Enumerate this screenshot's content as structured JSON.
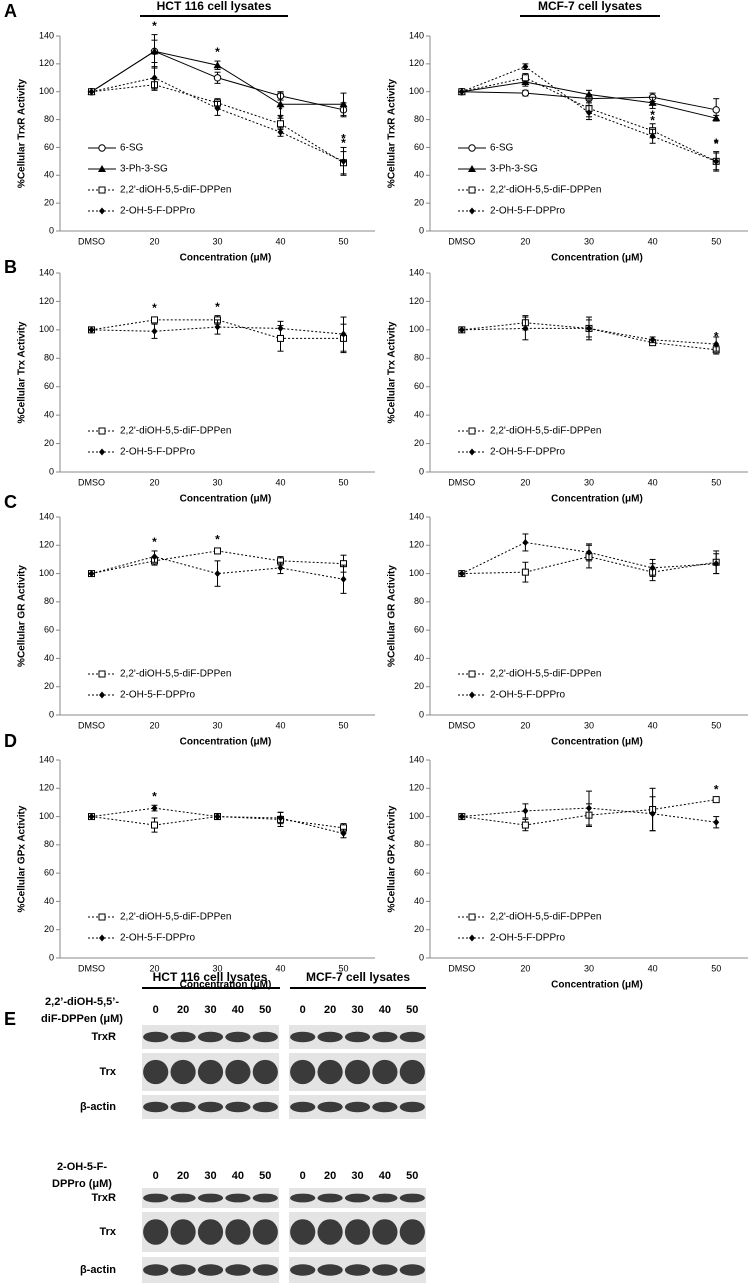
{
  "panel_labels": [
    "A",
    "B",
    "C",
    "D",
    "E"
  ],
  "column_titles": [
    "HCT 116 cell lysates",
    "MCF-7 cell lysates"
  ],
  "chart_data": [
    {
      "type": "line",
      "ylabel": "%Cellular TrxR Activity",
      "xlabel": "Concentration (μM)",
      "categories": [
        "DMSO",
        "20",
        "30",
        "40",
        "50"
      ],
      "ylim": [
        0,
        140
      ],
      "yticks": [
        0,
        20,
        40,
        60,
        80,
        100,
        120,
        140
      ],
      "legend": "lower left",
      "series": [
        {
          "name": "6-SG",
          "color": "#000000",
          "marker": "circle-open",
          "line": "solid",
          "values": [
            100,
            129,
            110,
            97,
            87
          ],
          "errors": [
            0,
            8,
            4,
            3,
            5
          ],
          "annotations": [
            null,
            null,
            null,
            null,
            null
          ]
        },
        {
          "name": "3-Ph-3-SG",
          "color": "#000000",
          "marker": "triangle",
          "line": "solid",
          "values": [
            100,
            129,
            119,
            91,
            91
          ],
          "errors": [
            0,
            12,
            3,
            8,
            8
          ],
          "annotations": [
            null,
            "*",
            "*",
            null,
            null
          ]
        },
        {
          "name": "2,2'-diOH-5,5-diF-DPPen",
          "color": "#000000",
          "marker": "square-open",
          "line": "dotted",
          "values": [
            100,
            105,
            92,
            77,
            49
          ],
          "errors": [
            0,
            4,
            3,
            4,
            8
          ],
          "annotations": [
            null,
            null,
            null,
            "*",
            "*"
          ]
        },
        {
          "name": "2-OH-5-F-DPPro",
          "color": "#000000",
          "marker": "diamond",
          "line": "dotted",
          "values": [
            100,
            110,
            88,
            71,
            50
          ],
          "errors": [
            0,
            8,
            5,
            3,
            10
          ],
          "annotations": [
            null,
            null,
            null,
            "*",
            "*"
          ]
        }
      ]
    },
    {
      "type": "line",
      "ylabel": "%Cellular TrxR Activity",
      "xlabel": "Concentration (μM)",
      "categories": [
        "DMSO",
        "20",
        "30",
        "40",
        "50"
      ],
      "ylim": [
        0,
        140
      ],
      "yticks": [
        0,
        20,
        40,
        60,
        80,
        100,
        120,
        140
      ],
      "legend": "lower left",
      "series": [
        {
          "name": "6-SG",
          "color": "#000000",
          "marker": "circle-open",
          "line": "solid",
          "values": [
            100,
            99,
            95,
            96,
            87
          ],
          "errors": [
            0,
            2,
            3,
            3,
            8
          ],
          "annotations": [
            null,
            null,
            null,
            null,
            null
          ]
        },
        {
          "name": "3-Ph-3-SG",
          "color": "#000000",
          "marker": "triangle",
          "line": "solid",
          "values": [
            100,
            107,
            98,
            92,
            81
          ],
          "errors": [
            0,
            3,
            3,
            4,
            2
          ],
          "annotations": [
            null,
            null,
            null,
            null,
            null
          ]
        },
        {
          "name": "2,2'-diOH-5,5-diF-DPPen",
          "color": "#000000",
          "marker": "square-open",
          "line": "dotted",
          "values": [
            100,
            110,
            88,
            72,
            50
          ],
          "errors": [
            0,
            3,
            6,
            5,
            7
          ],
          "annotations": [
            null,
            null,
            null,
            "*",
            "*"
          ]
        },
        {
          "name": "2-OH-5-F-DPPro",
          "color": "#000000",
          "marker": "diamond",
          "line": "dotted",
          "values": [
            100,
            118,
            85,
            68,
            50
          ],
          "errors": [
            0,
            2,
            5,
            5,
            6
          ],
          "annotations": [
            null,
            null,
            null,
            "*",
            "*"
          ]
        }
      ]
    },
    {
      "type": "line",
      "ylabel": "%Cellular Trx Activity",
      "xlabel": "Concentration (μM)",
      "categories": [
        "DMSO",
        "20",
        "30",
        "40",
        "50"
      ],
      "ylim": [
        0,
        140
      ],
      "yticks": [
        0,
        20,
        40,
        60,
        80,
        100,
        120,
        140
      ],
      "legend": "lower left",
      "series": [
        {
          "name": "2,2'-diOH-5,5-diF-DPPen",
          "color": "#000000",
          "marker": "square-open",
          "line": "dotted",
          "values": [
            100,
            107,
            107,
            94,
            94
          ],
          "errors": [
            0,
            2,
            3,
            9,
            10
          ],
          "annotations": [
            null,
            "*",
            "*",
            null,
            null
          ]
        },
        {
          "name": "2-OH-5-F-DPPro",
          "color": "#000000",
          "marker": "diamond",
          "line": "dotted",
          "values": [
            100,
            99,
            102,
            101,
            97
          ],
          "errors": [
            0,
            5,
            5,
            5,
            12
          ],
          "annotations": [
            null,
            null,
            null,
            null,
            null
          ]
        }
      ]
    },
    {
      "type": "line",
      "ylabel": "%Cellular Trx Activity",
      "xlabel": "Concentration (μM)",
      "categories": [
        "DMSO",
        "20",
        "30",
        "40",
        "50"
      ],
      "ylim": [
        0,
        140
      ],
      "yticks": [
        0,
        20,
        40,
        60,
        80,
        100,
        120,
        140
      ],
      "legend": "lower left",
      "series": [
        {
          "name": "2,2'-diOH-5,5-diF-DPPen",
          "color": "#000000",
          "marker": "square-open",
          "line": "dotted",
          "values": [
            100,
            105,
            101,
            91,
            86
          ],
          "errors": [
            0,
            5,
            6,
            2,
            3
          ],
          "annotations": [
            null,
            null,
            null,
            null,
            "*"
          ]
        },
        {
          "name": "2-OH-5-F-DPPro",
          "color": "#000000",
          "marker": "diamond",
          "line": "dotted",
          "values": [
            100,
            101,
            101,
            93,
            90
          ],
          "errors": [
            0,
            8,
            8,
            2,
            5
          ],
          "annotations": [
            null,
            null,
            null,
            null,
            null
          ]
        }
      ]
    },
    {
      "type": "line",
      "ylabel": "%Cellular GR Activity",
      "xlabel": "Concentration (μM)",
      "categories": [
        "DMSO",
        "20",
        "30",
        "40",
        "50"
      ],
      "ylim": [
        0,
        140
      ],
      "yticks": [
        0,
        20,
        40,
        60,
        80,
        100,
        120,
        140
      ],
      "legend": "lower left",
      "series": [
        {
          "name": "2,2'-diOH-5,5-diF-DPPen",
          "color": "#000000",
          "marker": "square-open",
          "line": "dotted",
          "values": [
            100,
            109,
            116,
            109,
            107
          ],
          "errors": [
            0,
            3,
            2,
            3,
            6
          ],
          "annotations": [
            null,
            null,
            "*",
            null,
            null
          ]
        },
        {
          "name": "2-OH-5-F-DPPro",
          "color": "#000000",
          "marker": "diamond",
          "line": "dotted",
          "values": [
            100,
            112,
            100,
            104,
            96
          ],
          "errors": [
            0,
            4,
            9,
            4,
            10
          ],
          "annotations": [
            null,
            "*",
            null,
            null,
            null
          ]
        }
      ]
    },
    {
      "type": "line",
      "ylabel": "%Cellular GR Activity",
      "xlabel": "Concentration (μM)",
      "categories": [
        "DMSO",
        "20",
        "30",
        "40",
        "50"
      ],
      "ylim": [
        0,
        140
      ],
      "yticks": [
        0,
        20,
        40,
        60,
        80,
        100,
        120,
        140
      ],
      "legend": "lower left",
      "series": [
        {
          "name": "2,2'-diOH-5,5-diF-DPPen",
          "color": "#000000",
          "marker": "square-open",
          "line": "dotted",
          "values": [
            100,
            101,
            112,
            101,
            108
          ],
          "errors": [
            0,
            7,
            8,
            6,
            8
          ],
          "annotations": [
            null,
            null,
            null,
            null,
            null
          ]
        },
        {
          "name": "2-OH-5-F-DPPro",
          "color": "#000000",
          "marker": "diamond",
          "line": "dotted",
          "values": [
            100,
            122,
            115,
            104,
            107
          ],
          "errors": [
            0,
            6,
            6,
            6,
            7
          ],
          "annotations": [
            null,
            null,
            null,
            null,
            null
          ]
        }
      ]
    },
    {
      "type": "line",
      "ylabel": "%Cellular GPx Activity",
      "xlabel": "Concentration (μM)",
      "categories": [
        "DMSO",
        "20",
        "30",
        "40",
        "50"
      ],
      "ylim": [
        0,
        140
      ],
      "yticks": [
        0,
        20,
        40,
        60,
        80,
        100,
        120,
        140
      ],
      "legend": "lower left",
      "series": [
        {
          "name": "2,2'-diOH-5,5-diF-DPPen",
          "color": "#000000",
          "marker": "square-open",
          "line": "dotted",
          "values": [
            100,
            94,
            100,
            98,
            92
          ],
          "errors": [
            0,
            5,
            2,
            5,
            3
          ],
          "annotations": [
            null,
            null,
            null,
            null,
            null
          ]
        },
        {
          "name": "2-OH-5-F-DPPro",
          "color": "#000000",
          "marker": "diamond",
          "line": "dotted",
          "values": [
            100,
            106,
            100,
            99,
            88
          ],
          "errors": [
            0,
            2,
            2,
            4,
            3
          ],
          "annotations": [
            null,
            "*",
            null,
            null,
            null
          ]
        }
      ]
    },
    {
      "type": "line",
      "ylabel": "%Cellular GPx Activity",
      "xlabel": "Concentration (μM)",
      "categories": [
        "DMSO",
        "20",
        "30",
        "40",
        "50"
      ],
      "ylim": [
        0,
        140
      ],
      "yticks": [
        0,
        20,
        40,
        60,
        80,
        100,
        120,
        140
      ],
      "legend": "lower left",
      "series": [
        {
          "name": "2,2'-diOH-5,5-diF-DPPen",
          "color": "#000000",
          "marker": "square-open",
          "line": "dotted",
          "values": [
            100,
            94,
            101,
            105,
            112
          ],
          "errors": [
            0,
            4,
            8,
            15,
            1
          ],
          "annotations": [
            null,
            null,
            null,
            null,
            "*"
          ]
        },
        {
          "name": "2-OH-5-F-DPPro",
          "color": "#000000",
          "marker": "diamond",
          "line": "dotted",
          "values": [
            100,
            104,
            106,
            102,
            96
          ],
          "errors": [
            0,
            5,
            12,
            12,
            4
          ],
          "annotations": [
            null,
            null,
            null,
            null,
            null
          ]
        }
      ]
    }
  ],
  "blot": {
    "lanes": [
      "0",
      "20",
      "30",
      "40",
      "50"
    ],
    "rows": [
      "TrxR",
      "Trx",
      "β-actin"
    ],
    "groups": [
      {
        "treatment": [
          "2,2’-diOH-5,5’-",
          "diF-DPPen (μM)"
        ]
      },
      {
        "treatment": [
          "2-OH-5-F-",
          "DPPro (μM)"
        ]
      }
    ]
  }
}
